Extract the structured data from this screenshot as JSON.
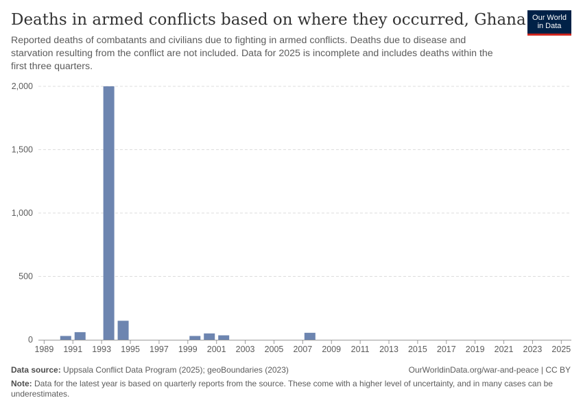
{
  "header": {
    "title": "Deaths in armed conflicts based on where they occurred, Ghana",
    "subtitle": "Reported deaths of combatants and civilians due to fighting in armed conflicts. Deaths due to disease and starvation resulting from the conflict are not included. Data for 2025 is incomplete and includes deaths within the first three quarters.",
    "logo_line1": "Our World",
    "logo_line2": "in Data"
  },
  "footer": {
    "source_label": "Data source:",
    "source_text": "Uppsala Conflict Data Program (2025); geoBoundaries (2023)",
    "credit": "OurWorldinData.org/war-and-peace | CC BY",
    "note_label": "Note:",
    "note_text": "Data for the latest year is based on quarterly reports from the source. These come with a higher level of uncertainty, and in many cases can be underestimates."
  },
  "colors": {
    "bar": "#6d85b0",
    "logo_bg": "#002147",
    "logo_accent": "#ce261e",
    "grid": "#dddddd"
  },
  "chart_data": {
    "type": "bar",
    "xlabel": "",
    "ylabel": "",
    "ylim": [
      0,
      2000
    ],
    "yticks": [
      0,
      500,
      1000,
      1500,
      2000
    ],
    "ytick_labels": [
      "0",
      "500",
      "1,000",
      "1,500",
      "2,000"
    ],
    "xticks": [
      1989,
      1991,
      1993,
      1995,
      1997,
      1999,
      2001,
      2003,
      2005,
      2007,
      2009,
      2011,
      2013,
      2015,
      2017,
      2019,
      2021,
      2023,
      2025
    ],
    "grid": "horizontal dashed",
    "series": [
      {
        "color": "#6d85b0",
        "points": [
          {
            "x": 1990,
            "y": 30
          },
          {
            "x": 1991,
            "y": 60
          },
          {
            "x": 1993,
            "y": 2000
          },
          {
            "x": 1994,
            "y": 150
          },
          {
            "x": 1999,
            "y": 30
          },
          {
            "x": 2000,
            "y": 50
          },
          {
            "x": 2001,
            "y": 35
          },
          {
            "x": 2007,
            "y": 55
          }
        ]
      }
    ]
  }
}
